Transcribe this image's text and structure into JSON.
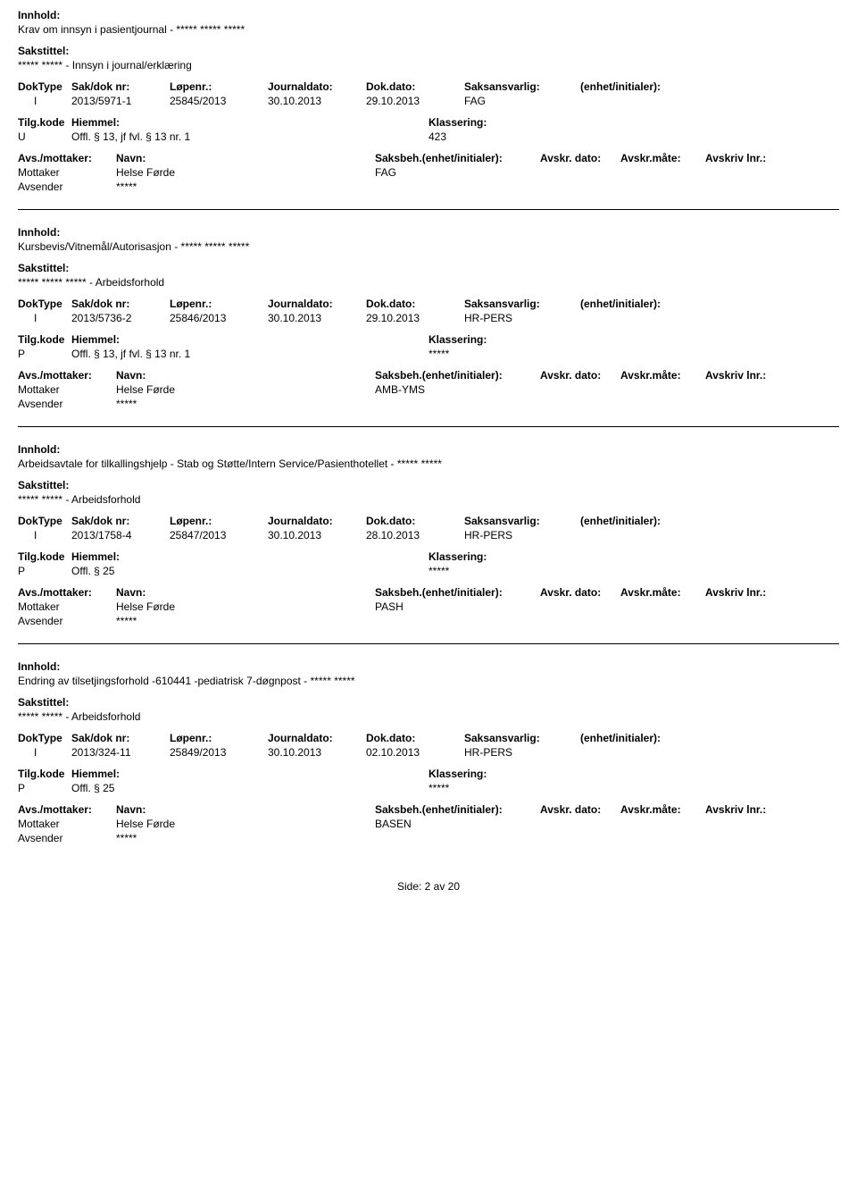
{
  "labels": {
    "innhold": "Innhold:",
    "sakstittel": "Sakstittel:",
    "doktype": "DokType",
    "saknr": "Sak/dok nr:",
    "lopenr": "Løpenr.:",
    "jdato": "Journaldato:",
    "ddato": "Dok.dato:",
    "saksansvarlig": "Saksansvarlig:",
    "enhet": "(enhet/initialer):",
    "tilgkode": "Tilg.kode",
    "hiemmel": "Hiemmel:",
    "klassering": "Klassering:",
    "avsmottaker": "Avs./mottaker:",
    "navn": "Navn:",
    "saksbeh": "Saksbeh.(enhet/initialer):",
    "avskrdato": "Avskr. dato:",
    "avskrmate": "Avskr.måte:",
    "avskrlnr": "Avskriv lnr.:",
    "mottaker": "Mottaker",
    "avsender": "Avsender"
  },
  "footer": {
    "text": "Side:  2  av  20"
  },
  "records": [
    {
      "innhold": "Krav om innsyn i pasientjournal - ***** ***** *****",
      "sakstittel": "***** ***** - Innsyn i journal/erklæring",
      "doktype": "I",
      "saknr": "2013/5971-1",
      "lopenr": "25845/2013",
      "jdato": "30.10.2013",
      "ddato": "29.10.2013",
      "saksansvarlig": "FAG",
      "tilgkode": "U",
      "hiemmel": "Offl. § 13, jf fvl. § 13 nr. 1",
      "klassering": "423",
      "mottaker_navn": "Helse Førde",
      "saksbeh": "FAG",
      "avsender_navn": "*****"
    },
    {
      "innhold": "Kursbevis/Vitnemål/Autorisasjon - ***** ***** *****",
      "sakstittel": "***** ***** ***** - Arbeidsforhold",
      "doktype": "I",
      "saknr": "2013/5736-2",
      "lopenr": "25846/2013",
      "jdato": "30.10.2013",
      "ddato": "29.10.2013",
      "saksansvarlig": "HR-PERS",
      "tilgkode": "P",
      "hiemmel": "Offl. § 13, jf fvl. § 13 nr. 1",
      "klassering": "*****",
      "mottaker_navn": "Helse Førde",
      "saksbeh": "AMB-YMS",
      "avsender_navn": "*****"
    },
    {
      "innhold": "Arbeidsavtale for tilkallingshjelp - Stab og Støtte/Intern Service/Pasienthotellet - ***** *****",
      "sakstittel": "***** ***** - Arbeidsforhold",
      "doktype": "I",
      "saknr": "2013/1758-4",
      "lopenr": "25847/2013",
      "jdato": "30.10.2013",
      "ddato": "28.10.2013",
      "saksansvarlig": "HR-PERS",
      "tilgkode": "P",
      "hiemmel": "Offl. § 25",
      "klassering": "*****",
      "mottaker_navn": "Helse Førde",
      "saksbeh": "PASH",
      "avsender_navn": "*****"
    },
    {
      "innhold": "Endring av tilsetjingsforhold -610441 -pediatrisk 7-døgnpost -  ***** *****",
      "sakstittel": "***** ***** - Arbeidsforhold",
      "doktype": "I",
      "saknr": "2013/324-11",
      "lopenr": "25849/2013",
      "jdato": "30.10.2013",
      "ddato": "02.10.2013",
      "saksansvarlig": "HR-PERS",
      "tilgkode": "P",
      "hiemmel": "Offl. § 25",
      "klassering": "*****",
      "mottaker_navn": "Helse Førde",
      "saksbeh": "BASEN",
      "avsender_navn": "*****"
    }
  ]
}
